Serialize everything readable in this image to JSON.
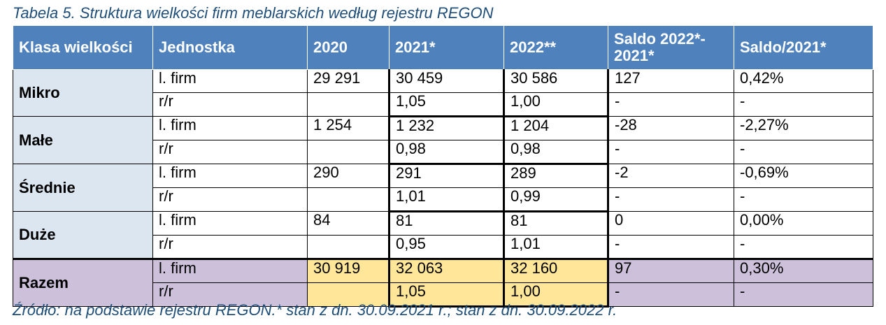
{
  "caption": "Tabela 5. Struktura wielkości firm meblarskich według rejestru REGON",
  "headers": {
    "klasa": "Klasa wielkości",
    "jednostka": "Jednostka",
    "y2020": "2020",
    "y2021": "2021*",
    "y2022": "2022**",
    "saldo": "Saldo 2022*- 2021*",
    "saldo_pct": "Saldo/2021*"
  },
  "groups": [
    {
      "name": "Mikro",
      "firm": {
        "unit": "l. firm",
        "y2020": "29 291",
        "y2021": "30 459",
        "y2022": "30 586",
        "saldo": "127",
        "saldo_pct": "0,42%"
      },
      "rr": {
        "unit": "r/r",
        "y2020": "",
        "y2021": "1,05",
        "y2022": "1,00",
        "saldo": "-",
        "saldo_pct": "-"
      }
    },
    {
      "name": "Małe",
      "firm": {
        "unit": "l. firm",
        "y2020": "1 254",
        "y2021": "1 232",
        "y2022": "1 204",
        "saldo": "-28",
        "saldo_pct": "-2,27%"
      },
      "rr": {
        "unit": "r/r",
        "y2020": "",
        "y2021": "0,98",
        "y2022": "0,98",
        "saldo": "-",
        "saldo_pct": "-"
      }
    },
    {
      "name": "Średnie",
      "firm": {
        "unit": "l. firm",
        "y2020": "290",
        "y2021": "291",
        "y2022": "289",
        "saldo": "-2",
        "saldo_pct": "-0,69%"
      },
      "rr": {
        "unit": "r/r",
        "y2020": "",
        "y2021": "1,01",
        "y2022": "0,99",
        "saldo": "-",
        "saldo_pct": "-"
      }
    },
    {
      "name": "Duże",
      "firm": {
        "unit": "l. firm",
        "y2020": "84",
        "y2021": "81",
        "y2022": "81",
        "saldo": "0",
        "saldo_pct": "0,00%"
      },
      "rr": {
        "unit": "r/r",
        "y2020": "",
        "y2021": "0,95",
        "y2022": "1,01",
        "saldo": "-",
        "saldo_pct": "-"
      }
    },
    {
      "name": "Razem",
      "firm": {
        "unit": "l. firm",
        "y2020": "30 919",
        "y2021": "32 063",
        "y2022": "32 160",
        "saldo": "97",
        "saldo_pct": "0,30%"
      },
      "rr": {
        "unit": "r/r",
        "y2020": "",
        "y2021": "1,05",
        "y2022": "1,00",
        "saldo": "-",
        "saldo_pct": "-"
      }
    }
  ],
  "source": "Źródło: na podstawie rejestru REGON.* stan z dn. 30.09.2021 r.; stan z dn. 30.09.2022 r.",
  "colors": {
    "header_bg": "#4f81bd",
    "class_bg": "#dce6f1",
    "total_bg": "#ccc0da",
    "highlight_bg": "#ffe699",
    "caption_text": "#1f4e79"
  }
}
